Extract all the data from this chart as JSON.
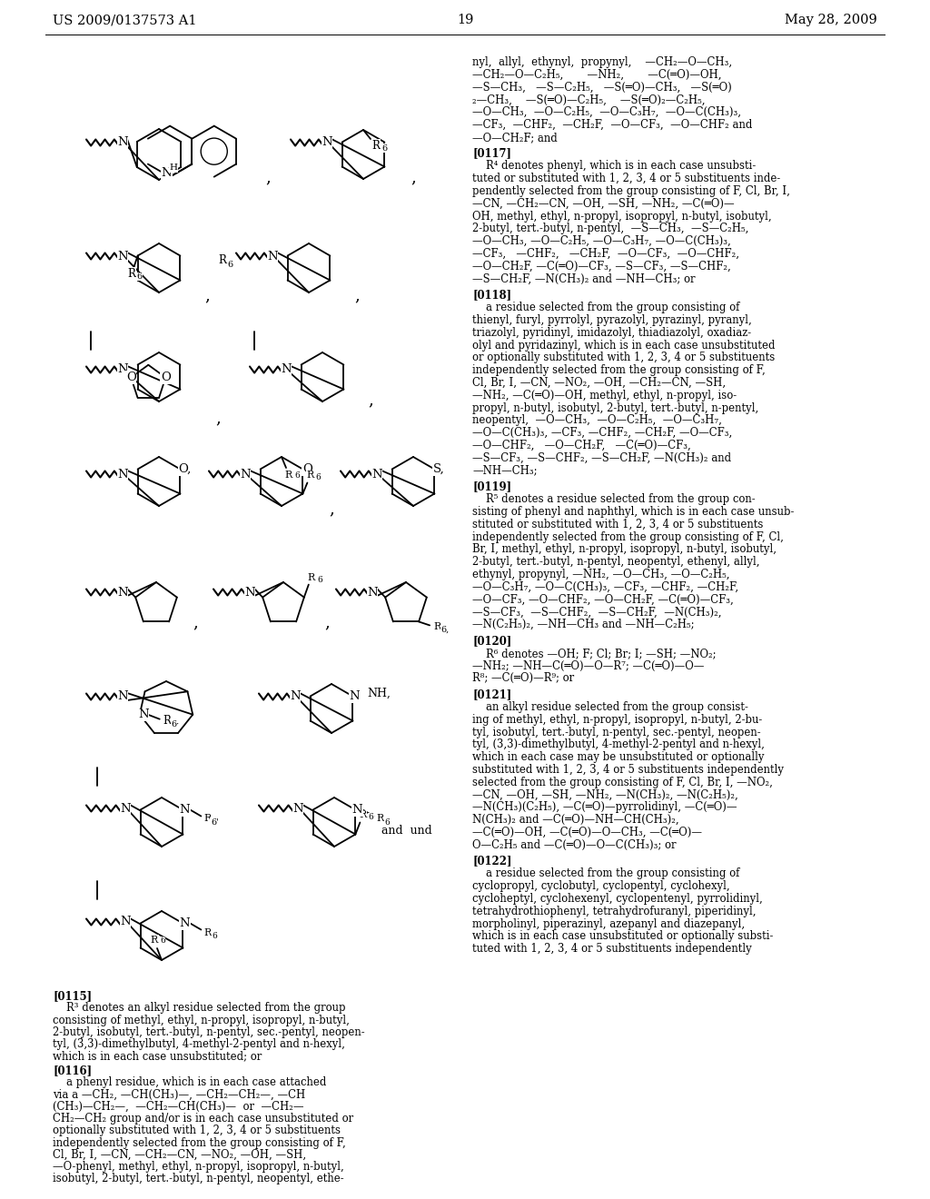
{
  "patent_number": "US 2009/0137573 A1",
  "page_number": "19",
  "date": "May 28, 2009",
  "bg": "#ffffff",
  "fg": "#000000"
}
